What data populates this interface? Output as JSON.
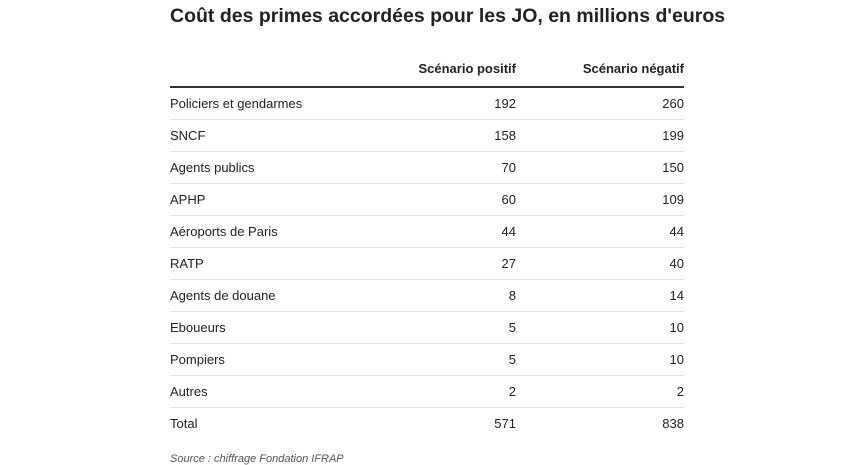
{
  "chart_data": {
    "type": "table",
    "title": "Coût des primes accordées pour les JO, en millions d'euros",
    "columns": [
      "",
      "Scénario positif",
      "Scénario négatif"
    ],
    "rows": [
      {
        "label": "Policiers et gendarmes",
        "positif": "192",
        "negatif": "260"
      },
      {
        "label": "SNCF",
        "positif": "158",
        "negatif": "199"
      },
      {
        "label": "Agents publics",
        "positif": "70",
        "negatif": "150"
      },
      {
        "label": "APHP",
        "positif": "60",
        "negatif": "109"
      },
      {
        "label": "Aéroports de Paris",
        "positif": "44",
        "negatif": "44"
      },
      {
        "label": "RATP",
        "positif": "27",
        "negatif": "40"
      },
      {
        "label": "Agents de douane",
        "positif": "8",
        "negatif": "14"
      },
      {
        "label": "Eboueurs",
        "positif": "5",
        "negatif": "10"
      },
      {
        "label": "Pompiers",
        "positif": "5",
        "negatif": "10"
      },
      {
        "label": "Autres",
        "positif": "2",
        "negatif": "2"
      },
      {
        "label": "Total",
        "positif": "571",
        "negatif": "838"
      }
    ],
    "source": "Source : chiffrage Fondation IFRAP"
  }
}
